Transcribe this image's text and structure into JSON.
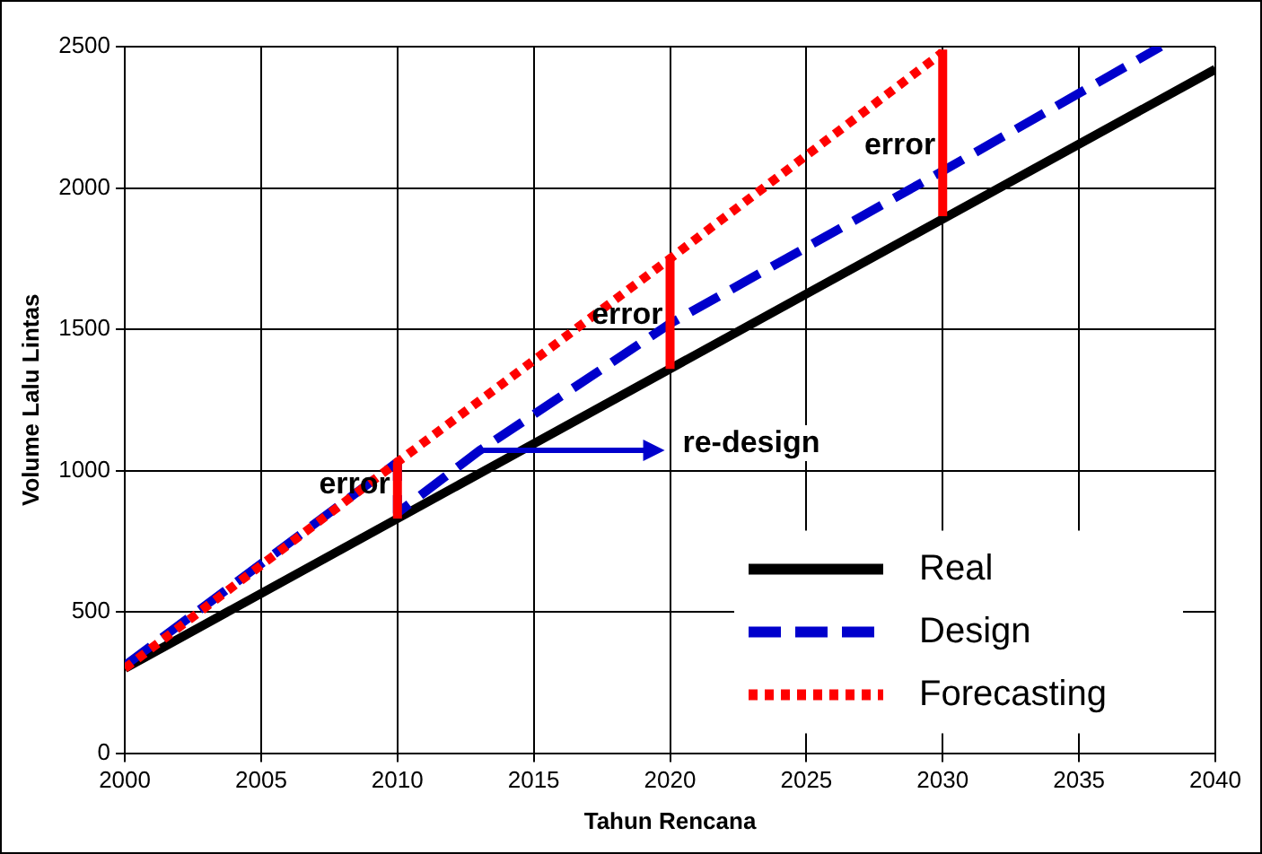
{
  "chart_data": {
    "type": "line",
    "xlabel": "Tahun Rencana",
    "ylabel": "Volume Lalu Lintas",
    "xlim": [
      2000,
      2040
    ],
    "xticks": [
      2000,
      2005,
      2010,
      2015,
      2020,
      2025,
      2030,
      2035,
      2040
    ],
    "ylim": [
      0,
      2500
    ],
    "yticks": [
      0,
      500,
      1000,
      1500,
      2000,
      2500
    ],
    "grid": true,
    "legend": "bottom right",
    "marker": "none",
    "series": [
      {
        "name": "Real",
        "color": "#000000",
        "line_style": "solid",
        "x": [
          2000,
          2040
        ],
        "values": [
          300,
          2420
        ]
      },
      {
        "name": "Design",
        "color": "#0000cc",
        "line_style": "dashed",
        "x": [
          2000,
          2010,
          2010,
          2013,
          2020,
          2030,
          2038
        ],
        "values": [
          310,
          1030,
          850,
          1070,
          1520,
          2060,
          2500
        ]
      },
      {
        "name": "Forecasting",
        "color": "#ff0000",
        "line_style": "dotted",
        "x": [
          2000,
          2010,
          2020,
          2030
        ],
        "values": [
          300,
          1030,
          1750,
          2480
        ]
      },
      {
        "color": "#ff0000",
        "line_style": "solid",
        "x": [
          2010,
          2010
        ],
        "values": [
          830,
          1030
        ]
      },
      {
        "color": "#ff0000",
        "line_style": "solid",
        "x": [
          2020,
          2020
        ],
        "values": [
          1360,
          1750
        ]
      },
      {
        "color": "#ff0000",
        "line_style": "solid",
        "x": [
          2030,
          2030
        ],
        "values": [
          1900,
          2490
        ]
      }
    ],
    "annotations": [
      {
        "text": "error",
        "x": 2010,
        "y": 950
      },
      {
        "text": "error",
        "x": 2020,
        "y": 1550
      },
      {
        "text": "error",
        "x": 2030,
        "y": 2150
      },
      {
        "text": "re-design",
        "x": 2013,
        "y": 1070
      }
    ]
  }
}
